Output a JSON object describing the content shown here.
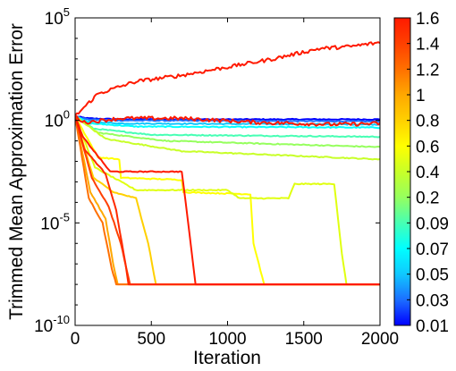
{
  "chart_data": {
    "type": "line",
    "xlabel": "Iteration",
    "ylabel": "Trimmed Mean Approximation Error",
    "xlim": [
      0,
      2000
    ],
    "ylim_log10": [
      -10,
      5
    ],
    "y_scale": "log",
    "x_ticks": [
      "0",
      "500",
      "1000",
      "1500",
      "2000"
    ],
    "y_ticks": [
      {
        "base": "10",
        "exp": "5"
      },
      {
        "base": "10",
        "exp": "0"
      },
      {
        "base": "10",
        "exp": "-5"
      },
      {
        "base": "10",
        "exp": "-10"
      }
    ],
    "colorbar": {
      "labels": [
        "1.6",
        "1.4",
        "1.2",
        "1",
        "0.8",
        "0.6",
        "0.4",
        "0.2",
        "0.09",
        "0.07",
        "0.05",
        "0.03",
        "0.01"
      ],
      "colors": [
        "#ff1a00",
        "#ff4000",
        "#ff7000",
        "#ffa800",
        "#ffd000",
        "#ffff00",
        "#c8ff28",
        "#96ff5e",
        "#46ffb4",
        "#00ffff",
        "#10c8ff",
        "#1c6eff",
        "#0000ff"
      ]
    },
    "series": [
      {
        "param": 0.01,
        "color": "#0000ff",
        "points": [
          [
            0,
            0.2
          ],
          [
            80,
            0.1
          ],
          [
            300,
            0.05
          ],
          [
            2000,
            0.05
          ]
        ]
      },
      {
        "param": 0.03,
        "color": "#1c6eff",
        "points": [
          [
            0,
            0.2
          ],
          [
            80,
            0.05
          ],
          [
            300,
            0
          ],
          [
            2000,
            -0.05
          ]
        ]
      },
      {
        "param": 0.05,
        "color": "#10c8ff",
        "points": [
          [
            0,
            0.2
          ],
          [
            80,
            -0.05
          ],
          [
            300,
            -0.15
          ],
          [
            2000,
            -0.2
          ]
        ]
      },
      {
        "param": 0.07,
        "color": "#00ffff",
        "points": [
          [
            0,
            0.2
          ],
          [
            100,
            -0.15
          ],
          [
            400,
            -0.3
          ],
          [
            2000,
            -0.35
          ]
        ]
      },
      {
        "param": 0.09,
        "color": "#46ffb4",
        "points": [
          [
            0,
            0.2
          ],
          [
            120,
            -0.4
          ],
          [
            500,
            -0.7
          ],
          [
            2000,
            -0.8
          ]
        ]
      },
      {
        "param": 0.2,
        "color": "#96ff5e",
        "points": [
          [
            0,
            0.2
          ],
          [
            150,
            -0.6
          ],
          [
            600,
            -1.0
          ],
          [
            2000,
            -1.3
          ]
        ]
      },
      {
        "param": 0.4,
        "color": "#c8ff28",
        "points": [
          [
            0,
            0.2
          ],
          [
            200,
            -0.9
          ],
          [
            700,
            -1.5
          ],
          [
            2000,
            -1.9
          ]
        ]
      },
      {
        "param": 0.6,
        "color": "#ffff00",
        "points": [
          [
            0,
            0.2
          ],
          [
            150,
            -1.8
          ],
          [
            290,
            -1.9
          ],
          [
            300,
            -2.8
          ],
          [
            700,
            -2.9
          ],
          [
            710,
            -3.5
          ],
          [
            1150,
            -3.6
          ],
          [
            1170,
            -6
          ],
          [
            1240,
            -8
          ],
          [
            2000,
            -8
          ]
        ]
      },
      {
        "param": 0.65,
        "color": "#e0ff10",
        "points": [
          [
            0,
            0.2
          ],
          [
            130,
            -2.3
          ],
          [
            400,
            -3.4
          ],
          [
            1000,
            -3.4
          ],
          [
            1080,
            -3.8
          ],
          [
            1400,
            -3.8
          ],
          [
            1440,
            -3.1
          ],
          [
            1700,
            -3.1
          ],
          [
            1750,
            -6.5
          ],
          [
            1780,
            -8
          ],
          [
            2000,
            -8
          ]
        ]
      },
      {
        "param": 0.8,
        "color": "#ffd000",
        "points": [
          [
            0,
            0.2
          ],
          [
            120,
            -2.8
          ],
          [
            250,
            -3.5
          ],
          [
            400,
            -3.8
          ],
          [
            480,
            -6
          ],
          [
            530,
            -8
          ],
          [
            2000,
            -8
          ]
        ]
      },
      {
        "param": 1.0,
        "color": "#ffa800",
        "points": [
          [
            0,
            0.2
          ],
          [
            100,
            -3.5
          ],
          [
            200,
            -4.8
          ],
          [
            250,
            -7
          ],
          [
            280,
            -8
          ],
          [
            2000,
            -8
          ]
        ]
      },
      {
        "param": 1.2,
        "color": "#ff7000",
        "points": [
          [
            0,
            0.2
          ],
          [
            90,
            -3.8
          ],
          [
            180,
            -5
          ],
          [
            240,
            -7.2
          ],
          [
            270,
            -8
          ],
          [
            2000,
            -8
          ]
        ]
      },
      {
        "param": 1.3,
        "color": "#ff4000",
        "points": [
          [
            0,
            0.2
          ],
          [
            110,
            -2.8
          ],
          [
            220,
            -4.2
          ],
          [
            300,
            -6
          ],
          [
            360,
            -8
          ],
          [
            2000,
            -8
          ]
        ]
      },
      {
        "param": 1.4,
        "color": "#ff2a00",
        "points": [
          [
            0,
            0.2
          ],
          [
            60,
            -1.4
          ],
          [
            200,
            -2.6
          ],
          [
            270,
            -4.4
          ],
          [
            330,
            -7
          ],
          [
            350,
            -8
          ],
          [
            2000,
            -8
          ]
        ]
      },
      {
        "param": 1.5,
        "color": "#ff1a00",
        "points": [
          [
            0,
            0.2
          ],
          [
            50,
            -0.8
          ],
          [
            230,
            -2.5
          ],
          [
            700,
            -2.5
          ],
          [
            750,
            -5.5
          ],
          [
            790,
            -8
          ],
          [
            2000,
            -8
          ]
        ]
      },
      {
        "param": 1.6,
        "color": "#ff1a00",
        "points": [
          [
            0,
            0.2
          ],
          [
            60,
            -0.1
          ],
          [
            300,
            0.1
          ],
          [
            700,
            0.1
          ],
          [
            1200,
            -0.1
          ],
          [
            1700,
            -0.2
          ],
          [
            2000,
            -0.15
          ]
        ]
      },
      {
        "param": 1.62,
        "color": "#ff1a00",
        "points": [
          [
            0,
            0.2
          ],
          [
            150,
            1.3
          ],
          [
            400,
            1.9
          ],
          [
            700,
            2.2
          ],
          [
            1000,
            2.6
          ],
          [
            1300,
            3.0
          ],
          [
            1600,
            3.5
          ],
          [
            1800,
            3.6
          ],
          [
            2000,
            3.8
          ]
        ]
      }
    ]
  }
}
